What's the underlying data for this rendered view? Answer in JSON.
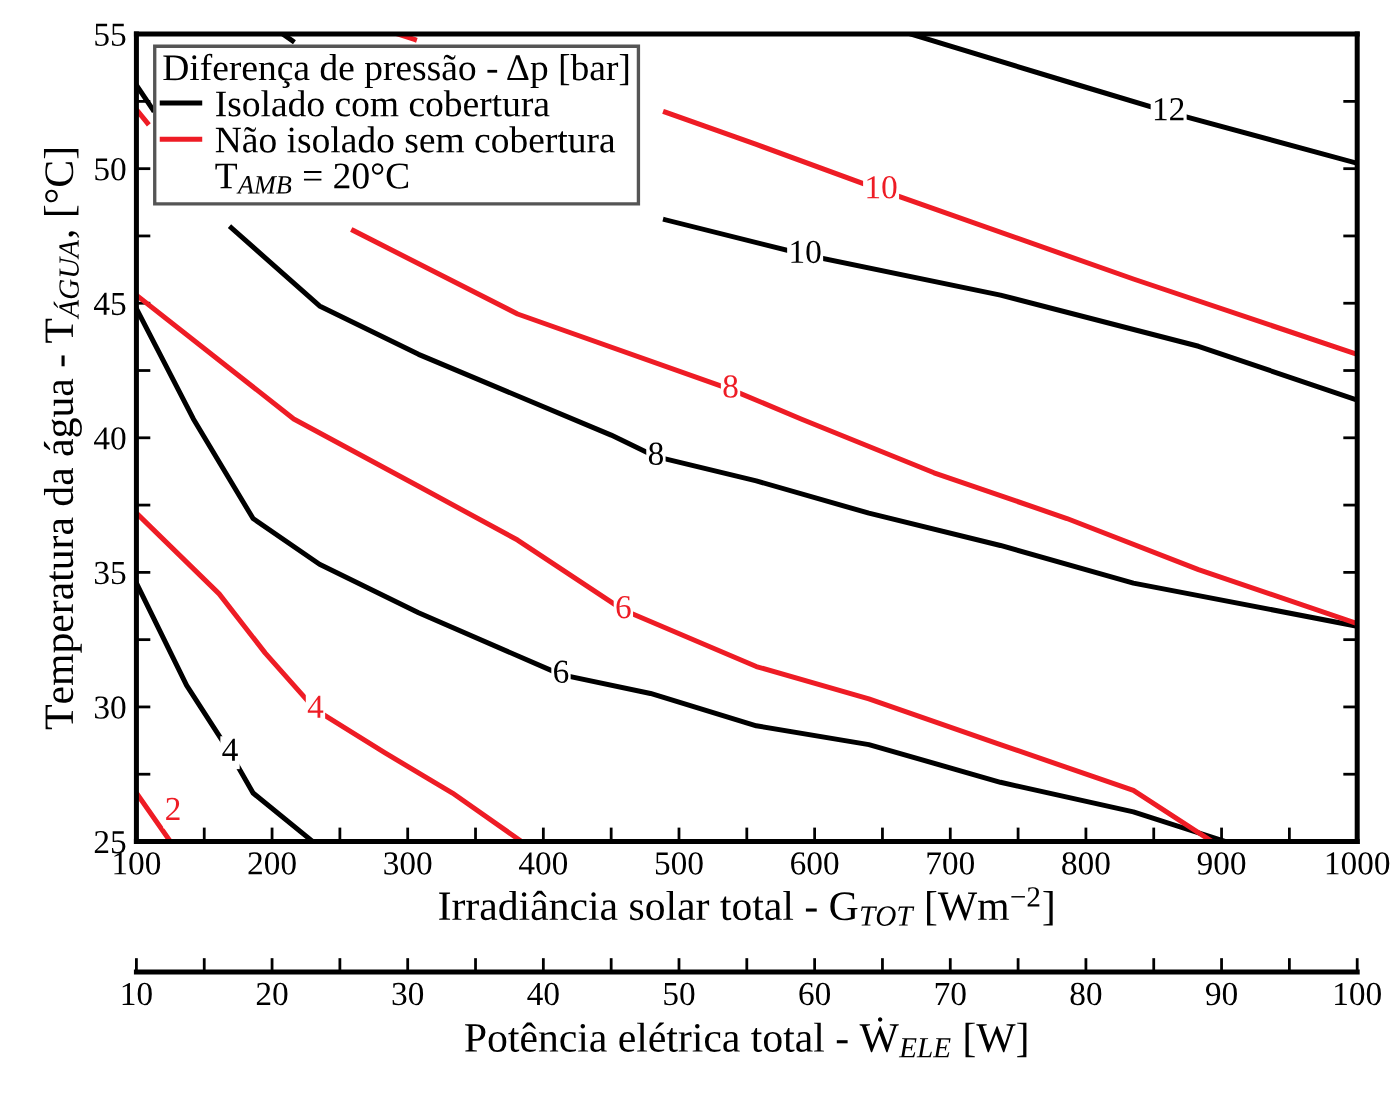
{
  "chart_data": {
    "type": "line",
    "xlabel": "Irradiância solar total - G$_{TOT}$ [Wm$^{−2}$]",
    "ylabel": "Temperatura da água - T$_{ÁGUA}$, [°C]",
    "x2label": "Potência elétrica total - Ẇ$_{ELE}$ [W]",
    "legend_title": "Diferença de pressão - Δp [bar]",
    "legend": "top left",
    "grid": false,
    "line_style": "solid",
    "xlim": [
      100,
      1000
    ],
    "xticks": [
      100,
      {
        "value": 150,
        "label": null
      },
      200,
      {
        "value": 250,
        "label": null
      },
      300,
      {
        "value": 350,
        "label": null
      },
      400,
      {
        "value": 450,
        "label": null
      },
      500,
      {
        "value": 550,
        "label": null
      },
      600,
      {
        "value": 650,
        "label": null
      },
      700,
      {
        "value": 750,
        "label": null
      },
      800,
      {
        "value": 850,
        "label": null
      },
      900,
      {
        "value": 950,
        "label": null
      },
      1000
    ],
    "ylim": [
      25,
      55
    ],
    "yticks": [
      25,
      {
        "value": 27.5,
        "label": null
      },
      30,
      {
        "value": 32.5,
        "label": null
      },
      35,
      {
        "value": 37.5,
        "label": null
      },
      40,
      {
        "value": 42.5,
        "label": null
      },
      45,
      {
        "value": 47.5,
        "label": null
      },
      50,
      {
        "value": 52.5,
        "label": null
      },
      55
    ],
    "x2lim": [
      10,
      100
    ],
    "x2ticks": [
      10,
      {
        "value": 15,
        "label": null
      },
      20,
      {
        "value": 25,
        "label": null
      },
      30,
      {
        "value": 35,
        "label": null
      },
      40,
      {
        "value": 45,
        "label": null
      },
      50,
      {
        "value": 55,
        "label": null
      },
      60,
      {
        "value": 65,
        "label": null
      },
      70,
      {
        "value": 75,
        "label": null
      },
      80,
      {
        "value": 85,
        "label": null
      },
      90,
      {
        "value": 95,
        "label": null
      },
      100
    ],
    "series": [
      {
        "name": "Isolado com cobertura",
        "color": "#000000",
        "x": [
          100,
          137,
          169,
          186,
          230
        ],
        "values": [
          34.6,
          30.8,
          28.3,
          26.8,
          25
        ]
      },
      {
        "color": "#000000",
        "x": [
          100,
          142,
          186,
          235,
          308,
          413,
          479,
          557,
          640,
          737,
          835,
          903
        ],
        "values": [
          44.8,
          40.7,
          37.0,
          35.3,
          33.5,
          31.2,
          30.5,
          29.3,
          28.6,
          27.2,
          26.1,
          25
        ]
      },
      {
        "color": "#000000",
        "x": [
          100,
          112,
          140,
          170,
          235,
          308,
          450,
          483,
          557,
          640,
          737,
          835,
          1000
        ],
        "values": [
          53.1,
          52.2,
          null,
          47.8,
          44.9,
          43.1,
          40.1,
          39.3,
          38.4,
          37.2,
          36.0,
          34.6,
          33.0
        ]
      },
      {
        "color": "#000000",
        "x": [
          208,
          215,
          350,
          490,
          593,
          737,
          883,
          1000
        ],
        "values": [
          55,
          54.75,
          null,
          48.1,
          46.8,
          45.3,
          43.4,
          41.4
        ]
      },
      {
        "color": "#000000",
        "x": [
          671,
          795,
          861,
          1000
        ],
        "values": [
          55,
          53.1,
          52.1,
          50.2
        ]
      },
      {
        "name": "Não isolado sem cobertura",
        "color": "#ee1c25",
        "x": [
          100,
          125
        ],
        "values": [
          26.8,
          25
        ]
      },
      {
        "color": "#ee1c25",
        "x": [
          100,
          161,
          195,
          232,
          283,
          333,
          384
        ],
        "values": [
          37.2,
          34.2,
          32.0,
          29.9,
          28.3,
          26.8,
          25
        ]
      },
      {
        "color": "#ee1c25",
        "x": [
          100,
          216,
          308,
          381,
          459,
          557,
          640,
          737,
          835,
          893
        ],
        "values": [
          45.3,
          40.7,
          38.2,
          36.2,
          33.6,
          31.5,
          30.3,
          28.6,
          26.9,
          25
        ]
      },
      {
        "color": "#ee1c25",
        "x": [
          100,
          108,
          180,
          260,
          381,
          538,
          590,
          688,
          786,
          883,
          1000
        ],
        "values": [
          52.2,
          51.7,
          null,
          47.7,
          44.6,
          41.8,
          40.7,
          38.7,
          37.0,
          35.1,
          33.1
        ]
      },
      {
        "color": "#ee1c25",
        "x": [
          293,
          305,
          420,
          490,
          557,
          649,
          835,
          1000
        ],
        "values": [
          55,
          54.8,
          null,
          52.1,
          50.9,
          49.2,
          45.9,
          43.1
        ]
      }
    ],
    "annotations": [
      {
        "text": "4",
        "x": 169,
        "y": 28.3
      },
      {
        "text": "6",
        "x": 413,
        "y": 31.2
      },
      {
        "text": "8",
        "x": 483,
        "y": 39.3
      },
      {
        "text": "10",
        "x": 593,
        "y": 46.8
      },
      {
        "text": "12",
        "x": 861,
        "y": 52.1
      },
      {
        "text": "2",
        "x": 127,
        "y": 26.1
      },
      {
        "text": "4",
        "x": 232,
        "y": 29.9
      },
      {
        "text": "6",
        "x": 459,
        "y": 33.6
      },
      {
        "text": "8",
        "x": 538,
        "y": 41.8
      },
      {
        "text": "10",
        "x": 649,
        "y": 49.2
      },
      "T$_{AMB}$ = 20°C"
    ]
  }
}
